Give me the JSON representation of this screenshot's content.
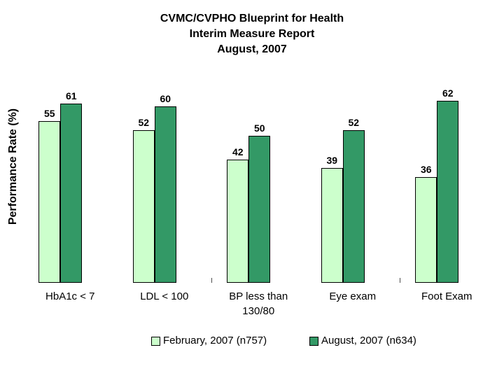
{
  "title": {
    "lines": [
      "CVMC/CVPHO Blueprint for Health",
      "Interim Measure Report",
      "August, 2007"
    ]
  },
  "chart_data": {
    "type": "bar",
    "title": "CVMC/CVPHO Blueprint for Health - Interim Measure Report - August, 2007",
    "ylabel": "Performance Rate (%)",
    "xlabel": "",
    "categories": [
      "HbA1c < 7",
      "LDL < 100",
      "BP less than\n130/80",
      "Eye exam",
      "Foot Exam"
    ],
    "series": [
      {
        "name": "February, 2007 (n757)",
        "color": "#ccffcc",
        "values": [
          55,
          52,
          42,
          39,
          36
        ]
      },
      {
        "name": "August, 2007 (n634)",
        "color": "#339966",
        "values": [
          61,
          60,
          50,
          52,
          62
        ]
      }
    ],
    "ylim": [
      0,
      70
    ],
    "grid": false,
    "axes_visible": false,
    "value_labels": true,
    "legend_position": "bottom"
  },
  "colors": {
    "series_february": "#ccffcc",
    "series_august": "#339966",
    "bar_border": "#000000",
    "background": "#ffffff"
  }
}
